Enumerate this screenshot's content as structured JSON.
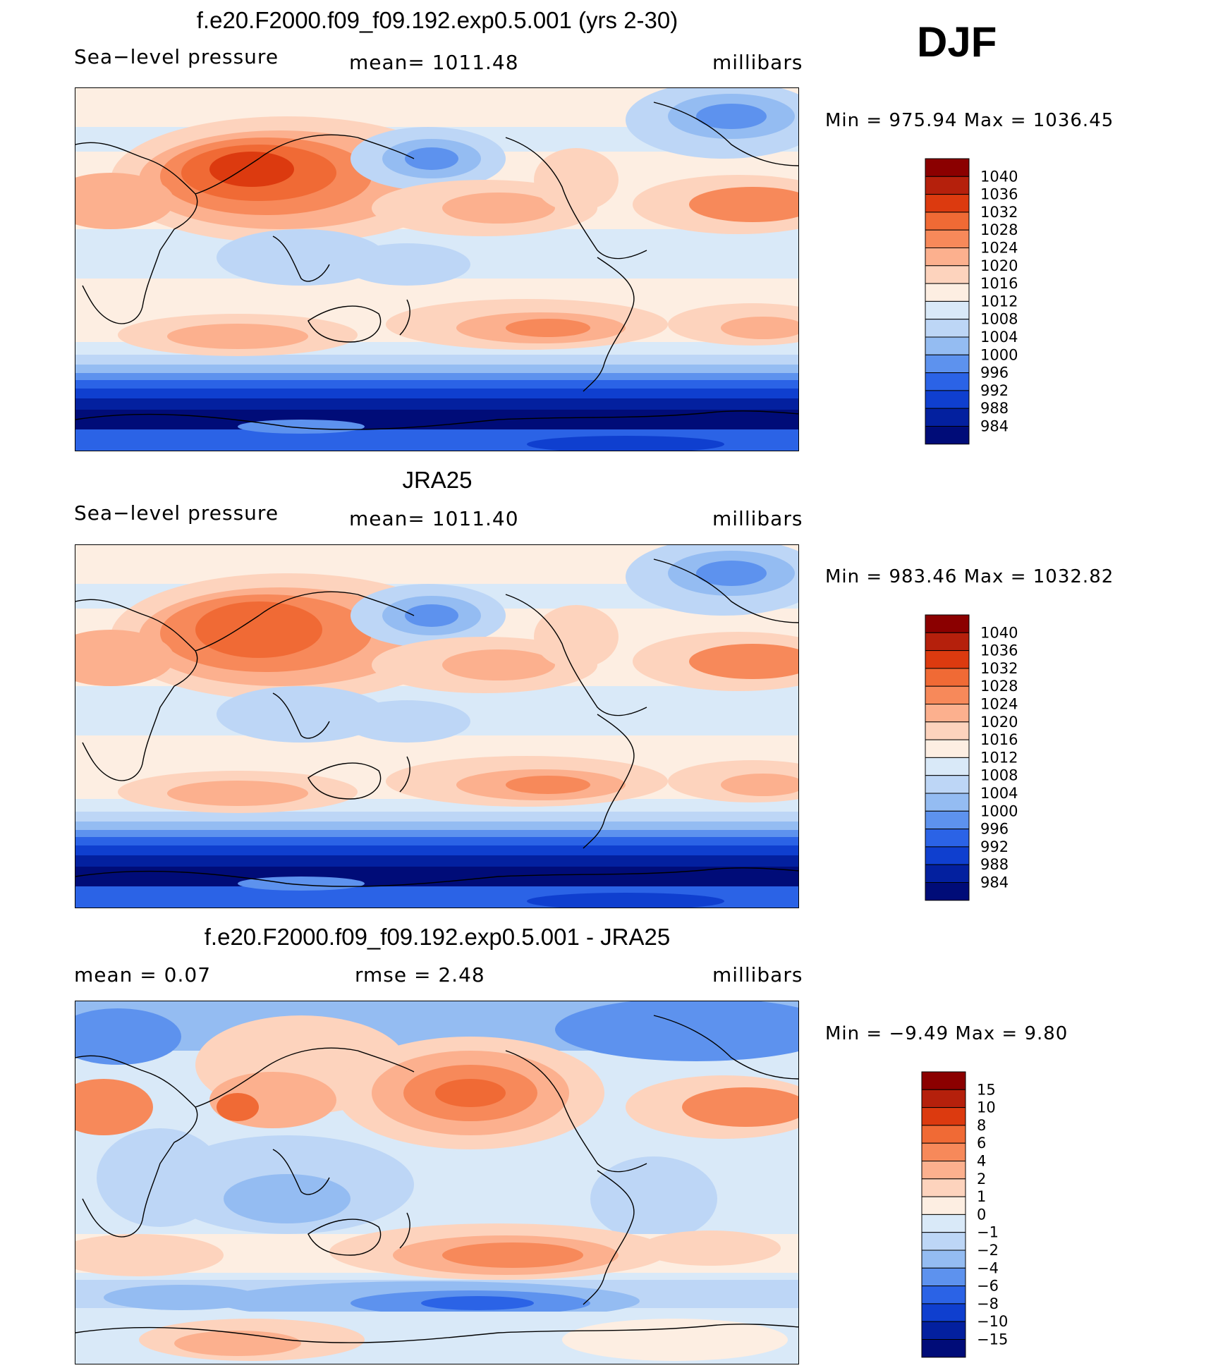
{
  "season": "DJF",
  "panels": [
    {
      "title": "f.e20.F2000.f09_f09.192.exp0.5.001 (yrs 2-30)",
      "left_label": "Sea−level  pressure",
      "center_label": "mean=  1011.48",
      "units": "millibars",
      "minmax": "Min  =  975.94  Max  =  1036.45",
      "levels": [
        "1040",
        "1036",
        "1032",
        "1028",
        "1024",
        "1020",
        "1016",
        "1012",
        "1008",
        "1004",
        "1000",
        "996",
        "992",
        "988",
        "984"
      ],
      "colors": [
        "#8b0000",
        "#b5200c",
        "#dc3a0f",
        "#f06a35",
        "#f7895a",
        "#fcb08e",
        "#fdd3bd",
        "#fdeee2",
        "#d9e9f8",
        "#bdd6f6",
        "#94bcf2",
        "#5d92ee",
        "#2b63e6",
        "#0f3fcf",
        "#03209f",
        "#000c78"
      ]
    },
    {
      "title": "JRA25",
      "left_label": "Sea−level  pressure",
      "center_label": "mean=  1011.40",
      "units": "millibars",
      "minmax": "Min  =  983.46  Max  =  1032.82",
      "levels": [
        "1040",
        "1036",
        "1032",
        "1028",
        "1024",
        "1020",
        "1016",
        "1012",
        "1008",
        "1004",
        "1000",
        "996",
        "992",
        "988",
        "984"
      ],
      "colors": [
        "#8b0000",
        "#b5200c",
        "#dc3a0f",
        "#f06a35",
        "#f7895a",
        "#fcb08e",
        "#fdd3bd",
        "#fdeee2",
        "#d9e9f8",
        "#bdd6f6",
        "#94bcf2",
        "#5d92ee",
        "#2b63e6",
        "#0f3fcf",
        "#03209f",
        "#000c78"
      ]
    },
    {
      "title": "f.e20.F2000.f09_f09.192.exp0.5.001 - JRA25",
      "left_label": "mean  =      0.07",
      "center_label": "rmse  =      2.48",
      "units": "millibars",
      "minmax": "Min  =    −9.49  Max  =      9.80",
      "levels": [
        "15",
        "10",
        "8",
        "6",
        "4",
        "2",
        "1",
        "0",
        "−1",
        "−2",
        "−4",
        "−6",
        "−8",
        "−10",
        "−15"
      ],
      "colors": [
        "#8b0000",
        "#b5200c",
        "#dc3a0f",
        "#f06a35",
        "#f7895a",
        "#fcb08e",
        "#fdd3bd",
        "#fdeee2",
        "#d9e9f8",
        "#bdd6f6",
        "#94bcf2",
        "#5d92ee",
        "#2b63e6",
        "#0f3fcf",
        "#03209f",
        "#000c78"
      ]
    }
  ],
  "chart_data": [
    {
      "type": "heatmap",
      "title": "f.e20.F2000.f09_f09.192.exp0.5.001 (yrs 2-30)",
      "variable": "Sea−level  pressure",
      "units": "millibars",
      "mean": 1011.48,
      "min": 975.94,
      "max": 1036.45,
      "contour_levels": [
        984,
        988,
        992,
        996,
        1000,
        1004,
        1008,
        1012,
        1016,
        1020,
        1024,
        1028,
        1032,
        1036,
        1040
      ]
    },
    {
      "type": "heatmap",
      "title": "JRA25",
      "variable": "Sea−level  pressure",
      "units": "millibars",
      "mean": 1011.4,
      "min": 983.46,
      "max": 1032.82,
      "contour_levels": [
        984,
        988,
        992,
        996,
        1000,
        1004,
        1008,
        1012,
        1016,
        1020,
        1024,
        1028,
        1032,
        1036,
        1040
      ]
    },
    {
      "type": "heatmap",
      "title": "f.e20.F2000.f09_f09.192.exp0.5.001 - JRA25",
      "units": "millibars",
      "mean": 0.07,
      "rmse": 2.48,
      "min": -9.49,
      "max": 9.8,
      "contour_levels": [
        -15,
        -10,
        -8,
        -6,
        -4,
        -2,
        -1,
        0,
        1,
        2,
        4,
        6,
        8,
        10,
        15
      ]
    }
  ]
}
